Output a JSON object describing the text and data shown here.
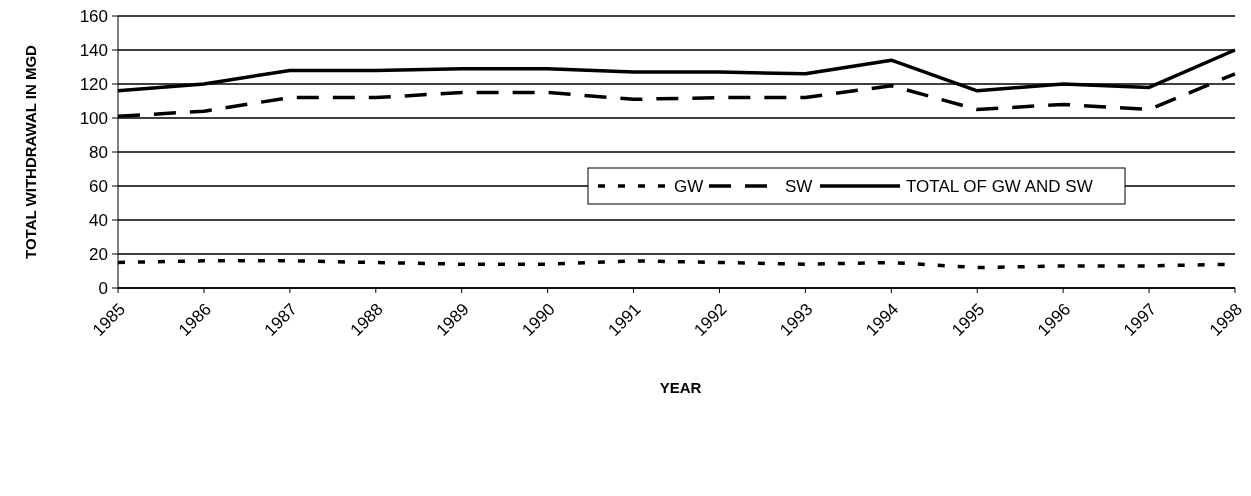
{
  "chart_data": {
    "type": "line",
    "xlabel": "YEAR",
    "ylabel": "TOTAL WITHDRAWAL IN MGD",
    "categories": [
      "1985",
      "1986",
      "1987",
      "1988",
      "1989",
      "1990",
      "1991",
      "1992",
      "1993",
      "1994",
      "1995",
      "1996",
      "1997",
      "1998"
    ],
    "series": [
      {
        "name": "GW",
        "color": "#000000",
        "line_style": "dotted",
        "values": [
          15,
          16,
          16,
          15,
          14,
          14,
          16,
          15,
          14,
          15,
          12,
          13,
          13,
          14
        ]
      },
      {
        "name": "SW",
        "color": "#000000",
        "line_style": "dashed",
        "values": [
          101,
          104,
          112,
          112,
          115,
          115,
          111,
          112,
          112,
          119,
          105,
          108,
          105,
          126
        ]
      },
      {
        "name": "TOTAL OF GW AND SW",
        "color": "#000000",
        "line_style": "solid",
        "values": [
          116,
          120,
          128,
          128,
          129,
          129,
          127,
          127,
          126,
          134,
          116,
          120,
          118,
          140
        ]
      }
    ],
    "ylim": [
      0,
      160
    ],
    "yticks": [
      0,
      20,
      40,
      60,
      80,
      100,
      120,
      140,
      160
    ],
    "grid": "y",
    "legend": "right",
    "marker": "none"
  }
}
